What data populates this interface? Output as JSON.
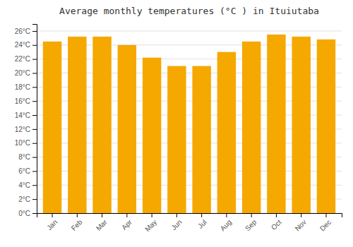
{
  "chart_data": {
    "type": "bar",
    "title": "Average monthly temperatures (°C ) in Ituiutaba",
    "categories": [
      "Jan",
      "Feb",
      "Mar",
      "Apr",
      "May",
      "Jun",
      "Jul",
      "Aug",
      "Sep",
      "Oct",
      "Nov",
      "Dec"
    ],
    "values": [
      24.5,
      25.2,
      25.2,
      24.0,
      22.2,
      21.0,
      21.0,
      23.0,
      24.5,
      25.5,
      25.2,
      24.8
    ],
    "color": "#F5A800",
    "ylim": [
      0,
      27
    ],
    "yticks": [
      {
        "value": 0,
        "label": "0°C"
      },
      {
        "value": 2,
        "label": "2°C"
      },
      {
        "value": 4,
        "label": "4°C"
      },
      {
        "value": 6,
        "label": "6°C"
      },
      {
        "value": 8,
        "label": "8°C"
      },
      {
        "value": 10,
        "label": "10°C"
      },
      {
        "value": 12,
        "label": "12°C"
      },
      {
        "value": 14,
        "label": "14°C"
      },
      {
        "value": 16,
        "label": "16°C"
      },
      {
        "value": 18,
        "label": "18°C"
      },
      {
        "value": 20,
        "label": "20°C"
      },
      {
        "value": 22,
        "label": "22°C"
      },
      {
        "value": 24,
        "label": "24°C"
      },
      {
        "value": 26,
        "label": "26°C"
      }
    ],
    "grid": true
  }
}
